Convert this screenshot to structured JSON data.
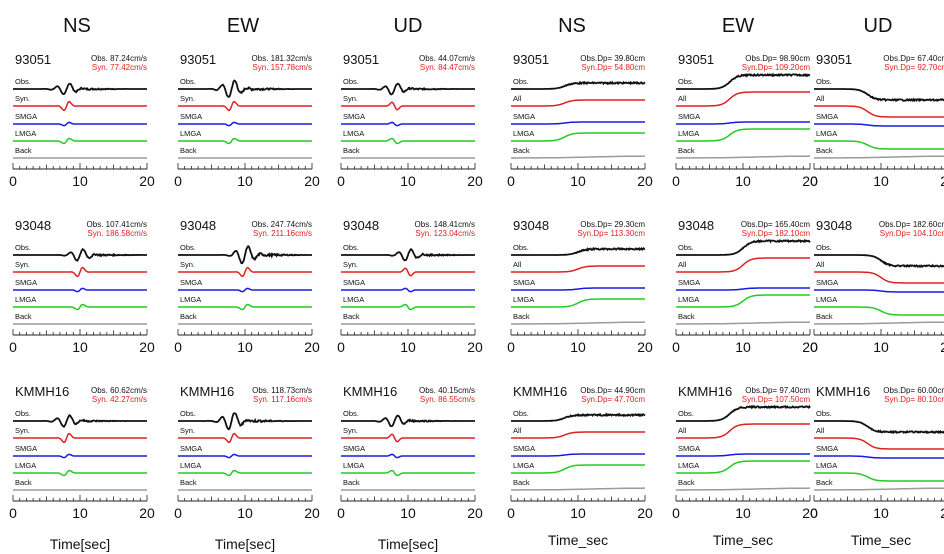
{
  "colors": {
    "obs": "#111111",
    "syn": "#e02020",
    "smga": "#1a1ae0",
    "lmga": "#22cc22",
    "back": "#9a9a9a",
    "obs_text": "#111111",
    "syn_text": "#e02020"
  },
  "headers": [
    "NS",
    "EW",
    "UD",
    "NS",
    "EW",
    "UD"
  ],
  "xlabels": {
    "left": "Time[sec]",
    "right": "Time_sec"
  },
  "trace_labels": {
    "left": [
      "Obs.",
      "Syn.",
      "SMGA",
      "LMGA",
      "Back"
    ],
    "right": [
      "Obs.",
      "All",
      "SMGA",
      "LMGA",
      "Back"
    ]
  },
  "x_ticks": [
    "0",
    "10",
    "20"
  ],
  "stations": [
    "93051",
    "93048",
    "KMMH16"
  ],
  "rows": [
    {
      "station": "93051",
      "panels": [
        {
          "type": "vel",
          "comp": "NS",
          "obs": "Obs.  87.24cm/s",
          "syn": "Syn.  77.42cm/s"
        },
        {
          "type": "vel",
          "comp": "EW",
          "obs": "Obs. 181.32cm/s",
          "syn": "Syn. 157.78cm/s"
        },
        {
          "type": "vel",
          "comp": "UD",
          "obs": "Obs.  44.07cm/s",
          "syn": "Syn.  84.47cm/s"
        },
        {
          "type": "disp",
          "comp": "NS",
          "obs": "Obs.Dp=  39.80cm",
          "syn": "Syn.Dp=  54.80cm"
        },
        {
          "type": "disp",
          "comp": "EW",
          "obs": "Obs.Dp=  98.90cm",
          "syn": "Syn.Dp= 109.20cm"
        },
        {
          "type": "disp",
          "comp": "UD",
          "obs": "Obs.Dp=  67.40cm",
          "syn": "Syn.Dp=  92.70cm"
        }
      ]
    },
    {
      "station": "93048",
      "panels": [
        {
          "type": "vel",
          "comp": "NS",
          "obs": "Obs. 107.41cm/s",
          "syn": "Syn. 186.58cm/s"
        },
        {
          "type": "vel",
          "comp": "EW",
          "obs": "Obs. 247.74cm/s",
          "syn": "Syn. 211.16cm/s"
        },
        {
          "type": "vel",
          "comp": "UD",
          "obs": "Obs. 148.41cm/s",
          "syn": "Syn. 123.04cm/s"
        },
        {
          "type": "disp",
          "comp": "NS",
          "obs": "Obs.Dp=  29.30cm",
          "syn": "Syn.Dp= 113.30cm"
        },
        {
          "type": "disp",
          "comp": "EW",
          "obs": "Obs.Dp= 165.40cm",
          "syn": "Syn.Dp= 182.10cm"
        },
        {
          "type": "disp",
          "comp": "UD",
          "obs": "Obs.Dp= 182.60cm",
          "syn": "Syn.Dp= 104.10cm"
        }
      ]
    },
    {
      "station": "KMMH16",
      "panels": [
        {
          "type": "vel",
          "comp": "NS",
          "obs": "Obs.  60.62cm/s",
          "syn": "Syn.  42.27cm/s"
        },
        {
          "type": "vel",
          "comp": "EW",
          "obs": "Obs. 118.73cm/s",
          "syn": "Syn. 117.16cm/s"
        },
        {
          "type": "vel",
          "comp": "UD",
          "obs": "Obs.  40.15cm/s",
          "syn": "Syn.  86.55cm/s"
        },
        {
          "type": "disp",
          "comp": "NS",
          "obs": "Obs.Dp=  44.90cm",
          "syn": "Syn.Dp=  47.70cm"
        },
        {
          "type": "disp",
          "comp": "EW",
          "obs": "Obs.Dp=  97.40cm",
          "syn": "Syn.Dp= 107.50cm"
        },
        {
          "type": "disp",
          "comp": "UD",
          "obs": "Obs.Dp=  60.00cm",
          "syn": "Syn.Dp=  80.10cm"
        }
      ]
    }
  ],
  "chart_data": {
    "type": "line",
    "xlim": [
      0,
      20
    ],
    "x_ticks": [
      0,
      10,
      20
    ],
    "grid": false,
    "series": [
      {
        "name": "Obs."
      },
      {
        "name": "Syn."
      },
      {
        "name": "All"
      },
      {
        "name": "SMGA"
      },
      {
        "name": "LMGA"
      },
      {
        "name": "Back"
      }
    ],
    "peak_velocity_cm_s": {
      "93051": {
        "NS": {
          "obs": 87.24,
          "syn": 77.42
        },
        "EW": {
          "obs": 181.32,
          "syn": 157.78
        },
        "UD": {
          "obs": 44.07,
          "syn": 84.47
        }
      },
      "93048": {
        "NS": {
          "obs": 107.41,
          "syn": 186.58
        },
        "EW": {
          "obs": 247.74,
          "syn": 211.16
        },
        "UD": {
          "obs": 148.41,
          "syn": 123.04
        }
      },
      "KMMH16": {
        "NS": {
          "obs": 60.62,
          "syn": 42.27
        },
        "EW": {
          "obs": 118.73,
          "syn": 117.16
        },
        "UD": {
          "obs": 40.15,
          "syn": 86.55
        }
      }
    },
    "peak_displacement_cm": {
      "93051": {
        "NS": {
          "obs": 39.8,
          "syn": 54.8
        },
        "EW": {
          "obs": 98.9,
          "syn": 109.2
        },
        "UD": {
          "obs": 67.4,
          "syn": 92.7
        }
      },
      "93048": {
        "NS": {
          "obs": 29.3,
          "syn": 113.3
        },
        "EW": {
          "obs": 165.4,
          "syn": 182.1
        },
        "UD": {
          "obs": 182.6,
          "syn": 104.1
        }
      },
      "KMMH16": {
        "NS": {
          "obs": 44.9,
          "syn": 47.7
        },
        "EW": {
          "obs": 97.4,
          "syn": 107.5
        },
        "UD": {
          "obs": 60.0,
          "syn": 80.1
        }
      }
    }
  }
}
